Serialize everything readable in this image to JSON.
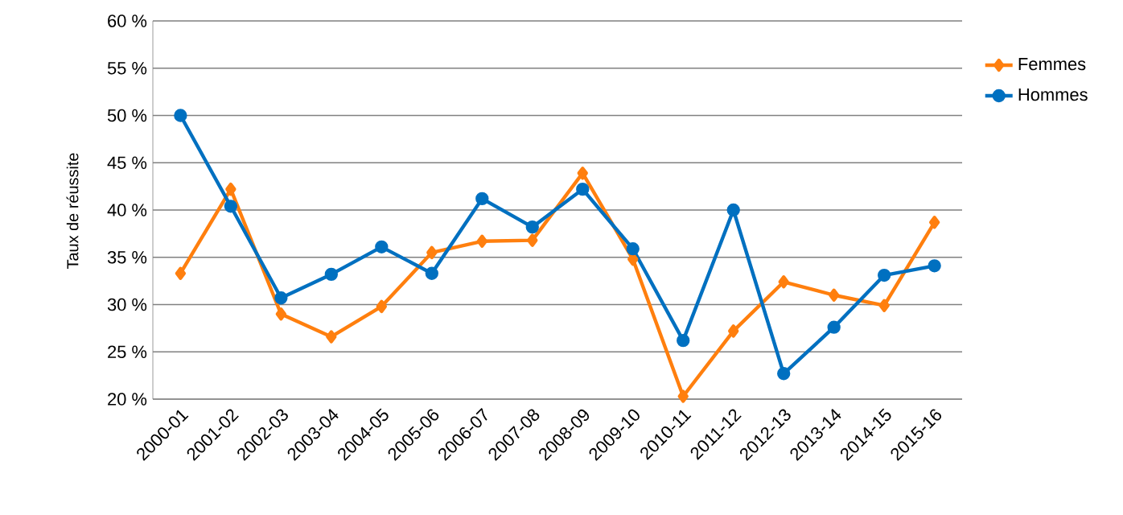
{
  "chart_data": {
    "type": "line",
    "ylabel": "Taux de réussite",
    "categories": [
      "2000-01",
      "2001-02",
      "2002-03",
      "2003-04",
      "2004-05",
      "2005-06",
      "2006-07",
      "2007-08",
      "2008-09",
      "2009-10",
      "2010-11",
      "2011-12",
      "2012-13",
      "2013-14",
      "2014-15",
      "2015-16"
    ],
    "series": [
      {
        "name": "Femmes",
        "color": "#ff7f0e",
        "marker": "diamond",
        "values": [
          33.3,
          42.2,
          29.0,
          26.6,
          29.8,
          35.5,
          36.7,
          36.8,
          43.9,
          34.8,
          20.3,
          27.2,
          32.4,
          31.0,
          29.9,
          38.7
        ]
      },
      {
        "name": "Hommes",
        "color": "#0070c0",
        "marker": "circle",
        "values": [
          50.0,
          40.4,
          30.7,
          33.2,
          36.1,
          33.3,
          41.2,
          38.2,
          42.2,
          35.9,
          26.2,
          40.0,
          22.7,
          27.6,
          33.1,
          34.1
        ]
      }
    ],
    "ylim": [
      20,
      60
    ],
    "yticks": [
      {
        "value": 20,
        "label": "20 %"
      },
      {
        "value": 25,
        "label": "25 %"
      },
      {
        "value": 30,
        "label": "30 %"
      },
      {
        "value": 35,
        "label": "35 %"
      },
      {
        "value": 40,
        "label": "40 %"
      },
      {
        "value": 45,
        "label": "45 %"
      },
      {
        "value": 50,
        "label": "50 %"
      },
      {
        "value": 55,
        "label": "55 %"
      },
      {
        "value": 60,
        "label": "60 %"
      }
    ],
    "grid": "y",
    "legend": "right",
    "line_style": "solid"
  }
}
